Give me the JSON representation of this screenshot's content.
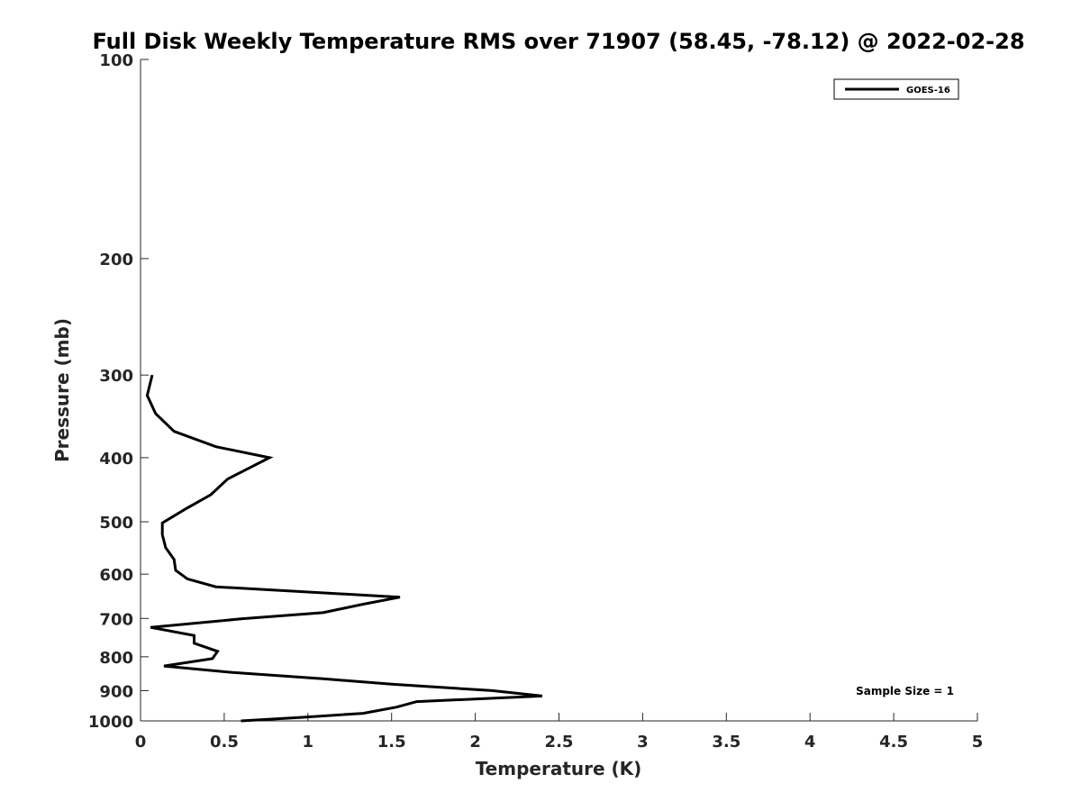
{
  "chart_data": {
    "type": "line",
    "title": "Full Disk Weekly Temperature RMS over 71907 (58.45, -78.12) @ 2022-02-28",
    "xlabel": "Temperature (K)",
    "ylabel": "Pressure (mb)",
    "xlim": [
      0,
      5
    ],
    "ylim": [
      100,
      1000
    ],
    "y_scale": "log",
    "y_reversed": true,
    "xticks": [
      0,
      0.5,
      1,
      1.5,
      2,
      2.5,
      3,
      3.5,
      4,
      4.5,
      5
    ],
    "xtick_labels": [
      "0",
      "0.5",
      "1",
      "1.5",
      "2",
      "2.5",
      "3",
      "3.5",
      "4",
      "4.5",
      "5"
    ],
    "yticks": [
      100,
      200,
      300,
      400,
      500,
      600,
      700,
      800,
      900,
      1000
    ],
    "ytick_labels": [
      "100",
      "200",
      "300",
      "400",
      "500",
      "600",
      "700",
      "800",
      "900",
      "1000"
    ],
    "grid": false,
    "legend_position": "top-right",
    "series": [
      {
        "name": "GOES-16",
        "color": "#000000",
        "points": [
          {
            "x": 0.07,
            "p": 300
          },
          {
            "x": 0.04,
            "p": 322
          },
          {
            "x": 0.09,
            "p": 343
          },
          {
            "x": 0.2,
            "p": 365
          },
          {
            "x": 0.45,
            "p": 385
          },
          {
            "x": 0.77,
            "p": 400
          },
          {
            "x": 0.52,
            "p": 431
          },
          {
            "x": 0.42,
            "p": 455
          },
          {
            "x": 0.27,
            "p": 478
          },
          {
            "x": 0.13,
            "p": 502
          },
          {
            "x": 0.13,
            "p": 523
          },
          {
            "x": 0.15,
            "p": 547
          },
          {
            "x": 0.2,
            "p": 570
          },
          {
            "x": 0.21,
            "p": 592
          },
          {
            "x": 0.28,
            "p": 610
          },
          {
            "x": 0.45,
            "p": 627
          },
          {
            "x": 1.55,
            "p": 650
          },
          {
            "x": 1.32,
            "p": 667
          },
          {
            "x": 1.09,
            "p": 686
          },
          {
            "x": 0.6,
            "p": 701
          },
          {
            "x": 0.06,
            "p": 722
          },
          {
            "x": 0.32,
            "p": 743
          },
          {
            "x": 0.32,
            "p": 763
          },
          {
            "x": 0.46,
            "p": 785
          },
          {
            "x": 0.43,
            "p": 805
          },
          {
            "x": 0.14,
            "p": 826
          },
          {
            "x": 0.55,
            "p": 845
          },
          {
            "x": 1.1,
            "p": 864
          },
          {
            "x": 1.5,
            "p": 880
          },
          {
            "x": 2.1,
            "p": 900
          },
          {
            "x": 2.4,
            "p": 917
          },
          {
            "x": 1.65,
            "p": 935
          },
          {
            "x": 1.53,
            "p": 953
          },
          {
            "x": 1.33,
            "p": 974
          },
          {
            "x": 0.95,
            "p": 988
          },
          {
            "x": 0.6,
            "p": 1000
          }
        ]
      }
    ],
    "annotation": "Sample Size = 1"
  }
}
